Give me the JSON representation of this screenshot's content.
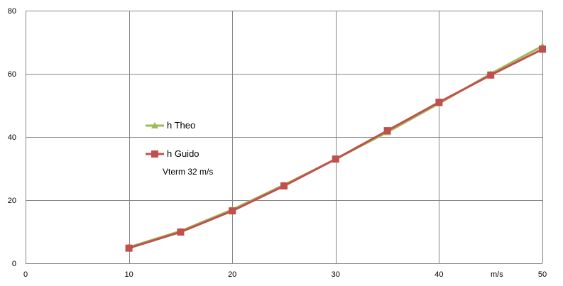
{
  "chart_data": {
    "type": "line",
    "title": "",
    "xlabel": "m/s",
    "ylabel": "",
    "xlim": [
      0,
      50
    ],
    "ylim": [
      0,
      80
    ],
    "x_ticks": [
      0,
      10,
      20,
      30,
      40,
      50
    ],
    "y_ticks": [
      0,
      20,
      40,
      60,
      80
    ],
    "grid": true,
    "legend_position": "center-left",
    "annotation": "Vterm 32 m/s",
    "series": [
      {
        "name": "h Theo",
        "color": "#9BBB59",
        "marker": "triangle",
        "x": [
          10,
          15,
          20,
          25,
          30,
          35,
          40,
          45,
          50
        ],
        "values": [
          5.1,
          10.2,
          17.0,
          24.8,
          33.0,
          41.5,
          50.6,
          60.0,
          68.8
        ]
      },
      {
        "name": "h Guido",
        "color": "#C0504D",
        "marker": "square",
        "x": [
          10,
          15,
          20,
          25,
          30,
          35,
          40,
          45,
          50
        ],
        "values": [
          4.8,
          9.9,
          16.6,
          24.5,
          33.0,
          42.0,
          51.0,
          59.6,
          67.8
        ]
      }
    ]
  }
}
